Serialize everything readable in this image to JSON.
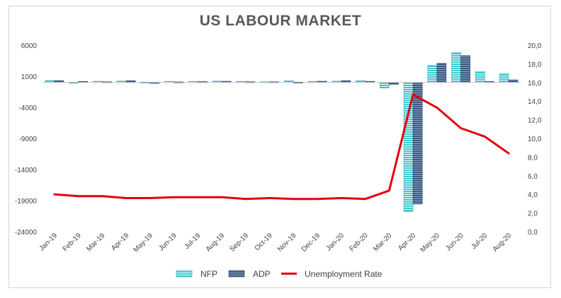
{
  "chart_data": {
    "type": "bar",
    "title": "US LABOUR MARKET",
    "categories": [
      "Jan-19",
      "Feb-19",
      "Mar-19",
      "Apr-19",
      "May-19",
      "Jun-19",
      "Jul-19",
      "Aug-19",
      "Sep-19",
      "Oct-19",
      "Nov-19",
      "Dec-19",
      "Jan-20",
      "Feb-20",
      "Mar-20",
      "Apr-20",
      "May-20",
      "Jun-20",
      "Jul-20",
      "Aug-20"
    ],
    "y_left": {
      "ticks": [
        "6000",
        "1000",
        "-4000",
        "-9000",
        "-14000",
        "-19000",
        "-24000"
      ],
      "min": -24000,
      "max": 6000
    },
    "y_right": {
      "ticks": [
        "20,0",
        "18,0",
        "16,0",
        "14,0",
        "12,0",
        "10,0",
        "8,0",
        "6,0",
        "4,0",
        "2,0",
        "0,0"
      ],
      "min": 0,
      "max": 20
    },
    "series": [
      {
        "name": "NFP",
        "axis": "left",
        "kind": "bar",
        "color": "#3ec6cf",
        "values": [
          312,
          56,
          196,
          224,
          72,
          178,
          166,
          219,
          180,
          128,
          266,
          184,
          214,
          275,
          -881,
          -20787,
          2725,
          4781,
          1761,
          1371
        ]
      },
      {
        "name": "ADP",
        "axis": "left",
        "kind": "bar",
        "color": "#3c5a80",
        "values": [
          300,
          170,
          130,
          280,
          27,
          102,
          156,
          195,
          135,
          125,
          67,
          202,
          291,
          183,
          -302,
          -19557,
          3065,
          4314,
          167,
          428
        ]
      },
      {
        "name": "Unemployment Rate",
        "axis": "right",
        "kind": "line",
        "color": "#e3000f",
        "values": [
          4.0,
          3.8,
          3.8,
          3.6,
          3.6,
          3.7,
          3.7,
          3.7,
          3.5,
          3.6,
          3.5,
          3.5,
          3.6,
          3.5,
          4.4,
          14.7,
          13.3,
          11.1,
          10.2,
          8.4
        ]
      }
    ],
    "legend": {
      "position": "bottom",
      "labels": [
        "NFP",
        "ADP",
        "Unemployment Rate"
      ]
    },
    "grid": false
  }
}
